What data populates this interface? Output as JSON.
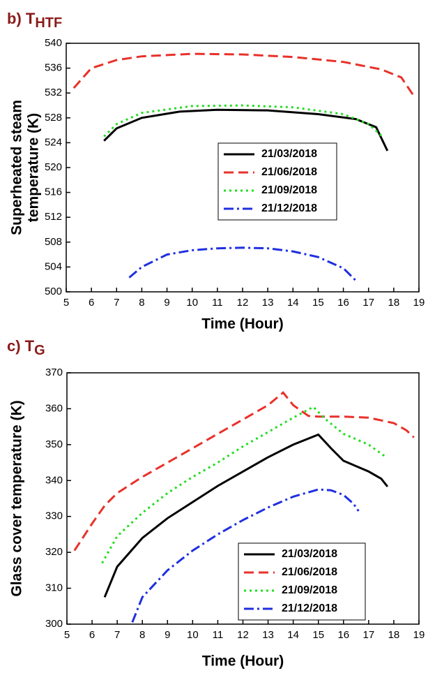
{
  "chart_data": [
    {
      "type": "line",
      "title": "b) T",
      "title_subscript": "HTF",
      "xlabel": "Time (Hour)",
      "ylabel": [
        "Superheated steam",
        "temperature (K)"
      ],
      "xlim": [
        5,
        19
      ],
      "xticks": [
        5,
        6,
        7,
        8,
        9,
        10,
        11,
        12,
        13,
        14,
        15,
        16,
        17,
        18,
        19
      ],
      "ylim": [
        500,
        540
      ],
      "yticks": [
        500,
        504,
        508,
        512,
        516,
        520,
        524,
        528,
        532,
        536,
        540
      ],
      "legend": "center",
      "series": [
        {
          "name": "21/03/2018",
          "color": "#000000",
          "dash": "solid",
          "x": [
            6.5,
            7,
            8,
            9.5,
            11,
            13,
            15,
            16.5,
            17.3,
            17.75
          ],
          "values": [
            524.3,
            526.3,
            528,
            529,
            529.3,
            529.2,
            528.6,
            527.8,
            526.5,
            522.7
          ]
        },
        {
          "name": "21/06/2018",
          "color": "#e8312a",
          "dash": "dash",
          "x": [
            5.3,
            6,
            7,
            8,
            10,
            12,
            14,
            16,
            17.5,
            18.3,
            18.8
          ],
          "values": [
            532.8,
            536,
            537.3,
            537.9,
            538.3,
            538.2,
            537.8,
            537,
            535.8,
            534.5,
            531.5
          ]
        },
        {
          "name": "21/09/2018",
          "color": "#22dd22",
          "dash": "dot",
          "x": [
            6.5,
            7,
            8,
            10,
            12,
            14,
            16,
            17,
            17.6
          ],
          "values": [
            525,
            527,
            528.8,
            529.9,
            530,
            529.7,
            528.6,
            527,
            524.8
          ]
        },
        {
          "name": "21/12/2018",
          "color": "#1f2fe0",
          "dash": "dashdot",
          "x": [
            7.5,
            8,
            9,
            10,
            11,
            12,
            13,
            14,
            15,
            16,
            16.5
          ],
          "values": [
            502.3,
            504,
            506,
            506.7,
            507,
            507.1,
            507,
            506.5,
            505.6,
            503.8,
            501.8
          ]
        }
      ]
    },
    {
      "type": "line",
      "title": "c) T",
      "title_subscript": "G",
      "xlabel": "Time (Hour)",
      "ylabel": [
        "Glass cover temperature (K)"
      ],
      "xlim": [
        5,
        19
      ],
      "xticks": [
        5,
        6,
        7,
        8,
        9,
        10,
        11,
        12,
        13,
        14,
        15,
        16,
        17,
        18,
        19
      ],
      "ylim": [
        300,
        370
      ],
      "yticks": [
        300,
        310,
        320,
        330,
        340,
        350,
        360,
        370
      ],
      "legend": "lower right",
      "series": [
        {
          "name": "21/03/2018",
          "color": "#000000",
          "dash": "solid",
          "x": [
            6.5,
            7,
            8,
            9,
            10,
            11,
            12,
            13,
            14,
            15,
            15.5,
            16,
            17,
            17.5,
            17.75
          ],
          "values": [
            307.5,
            316,
            324,
            329.5,
            334,
            338.5,
            342.5,
            346.5,
            350,
            352.8,
            349,
            345.5,
            342.5,
            340.5,
            338.3
          ]
        },
        {
          "name": "21/06/2018",
          "color": "#e8312a",
          "dash": "dash",
          "x": [
            5.3,
            6,
            6.5,
            7,
            8,
            9,
            10,
            11,
            12,
            13,
            13.6,
            14,
            14.6,
            15,
            16,
            17,
            18,
            18.5,
            18.8
          ],
          "values": [
            320.5,
            328,
            333,
            336.5,
            341,
            345,
            349,
            353,
            357,
            361,
            364.5,
            361,
            358,
            357.8,
            357.8,
            357.5,
            356,
            354,
            352
          ]
        },
        {
          "name": "21/09/2018",
          "color": "#22dd22",
          "dash": "dot",
          "x": [
            6.4,
            7,
            8,
            9,
            10,
            11,
            12,
            13,
            14,
            14.8,
            15.3,
            16,
            17,
            17.7
          ],
          "values": [
            317,
            324.5,
            331,
            336.5,
            341,
            345,
            349.5,
            353.5,
            357.5,
            360.5,
            357,
            353,
            350,
            346.5
          ]
        },
        {
          "name": "21/12/2018",
          "color": "#1f2fe0",
          "dash": "dashdot",
          "x": [
            7.6,
            8,
            9,
            10,
            11,
            12,
            13,
            14,
            15,
            15.5,
            16,
            16.4,
            16.6
          ],
          "values": [
            300.5,
            307.5,
            315,
            320.5,
            325,
            329,
            332.5,
            335.5,
            337.5,
            337.3,
            336,
            333.5,
            331.5
          ]
        }
      ]
    }
  ]
}
